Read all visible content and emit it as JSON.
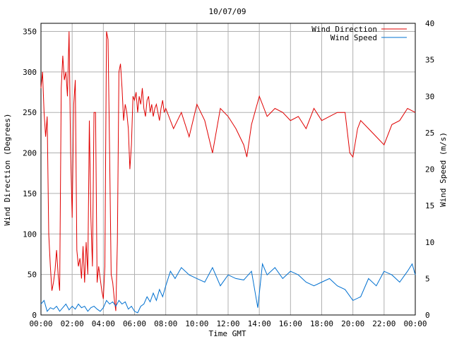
{
  "chart_data": {
    "type": "line",
    "title": "10/07/09",
    "xlabel": "Time GMT",
    "ylabel_left": "Wind Direction (Degrees)",
    "ylabel_right": "Wind Speed (m/s)",
    "x_ticks": [
      "00:00",
      "02:00",
      "04:00",
      "06:00",
      "08:00",
      "10:00",
      "12:00",
      "14:00",
      "16:00",
      "18:00",
      "20:00",
      "22:00",
      "00:00"
    ],
    "x_range_hours": [
      0,
      24
    ],
    "y_left_ticks": [
      "0",
      "50",
      "100",
      "150",
      "200",
      "250",
      "300",
      "350"
    ],
    "y_left_range": [
      0,
      360
    ],
    "y_right_ticks": [
      "0",
      "5",
      "10",
      "15",
      "20",
      "25",
      "30",
      "35",
      "40"
    ],
    "y_right_range": [
      0,
      40
    ],
    "grid": true,
    "legend_position": "top-right",
    "colors": {
      "direction": "#e00000",
      "speed": "#0070d0"
    },
    "series": [
      {
        "name": "Wind Direction",
        "axis": "left",
        "x_hours": [
          0,
          0.1,
          0.2,
          0.3,
          0.4,
          0.5,
          0.6,
          0.7,
          0.8,
          0.9,
          1,
          1.1,
          1.2,
          1.3,
          1.4,
          1.5,
          1.6,
          1.7,
          1.8,
          1.9,
          2,
          2.1,
          2.2,
          2.3,
          2.4,
          2.5,
          2.6,
          2.7,
          2.8,
          2.9,
          3,
          3.1,
          3.2,
          3.3,
          3.4,
          3.5,
          3.6,
          3.7,
          3.8,
          3.9,
          4,
          4.1,
          4.2,
          4.3,
          4.4,
          4.5,
          4.6,
          4.7,
          4.8,
          4.9,
          5,
          5.1,
          5.2,
          5.3,
          5.4,
          5.5,
          5.6,
          5.7,
          5.8,
          5.9,
          6,
          6.1,
          6.2,
          6.3,
          6.4,
          6.5,
          6.6,
          6.7,
          6.8,
          6.9,
          7,
          7.1,
          7.2,
          7.3,
          7.4,
          7.5,
          7.6,
          7.7,
          7.8,
          7.9,
          8,
          8.5,
          9,
          9.5,
          10,
          10.5,
          11,
          11.5,
          12,
          12.5,
          13,
          13.2,
          13.5,
          14,
          14.5,
          15,
          15.5,
          16,
          16.5,
          17,
          17.5,
          18,
          18.5,
          19,
          19.5,
          19.8,
          20,
          20.3,
          20.5,
          21,
          21.5,
          22,
          22.5,
          23,
          23.5,
          24
        ],
        "values": [
          280,
          300,
          250,
          220,
          245,
          100,
          60,
          30,
          40,
          55,
          80,
          50,
          30,
          280,
          320,
          290,
          300,
          270,
          350,
          200,
          120,
          260,
          290,
          80,
          60,
          70,
          45,
          85,
          40,
          90,
          50,
          240,
          120,
          60,
          250,
          250,
          40,
          60,
          45,
          30,
          20,
          60,
          350,
          340,
          200,
          50,
          40,
          20,
          5,
          90,
          300,
          310,
          280,
          240,
          260,
          250,
          230,
          180,
          210,
          270,
          265,
          275,
          250,
          270,
          260,
          280,
          255,
          245,
          265,
          270,
          250,
          260,
          245,
          255,
          260,
          250,
          240,
          255,
          265,
          250,
          255,
          230,
          250,
          220,
          260,
          240,
          200,
          255,
          245,
          230,
          210,
          195,
          235,
          270,
          245,
          255,
          250,
          240,
          245,
          230,
          255,
          240,
          245,
          250,
          250,
          200,
          195,
          230,
          240,
          230,
          220,
          210,
          235,
          240,
          255,
          250
        ]
      },
      {
        "name": "Wind Speed",
        "axis": "right",
        "x_hours": [
          0,
          0.2,
          0.4,
          0.6,
          0.8,
          1,
          1.2,
          1.4,
          1.6,
          1.8,
          2,
          2.2,
          2.4,
          2.6,
          2.8,
          3,
          3.2,
          3.4,
          3.6,
          3.8,
          4,
          4.2,
          4.4,
          4.6,
          4.8,
          5,
          5.2,
          5.4,
          5.6,
          5.8,
          6,
          6.2,
          6.4,
          6.6,
          6.8,
          7,
          7.2,
          7.4,
          7.6,
          7.8,
          8,
          8.3,
          8.6,
          9,
          9.5,
          10,
          10.5,
          11,
          11.5,
          12,
          12.5,
          13,
          13.5,
          13.9,
          14.2,
          14.5,
          15,
          15.5,
          16,
          16.5,
          17,
          17.5,
          18,
          18.5,
          19,
          19.5,
          20,
          20.5,
          21,
          21.5,
          22,
          22.5,
          23,
          23.5,
          23.8,
          24
        ],
        "values": [
          1.5,
          2,
          0.5,
          1,
          0.8,
          1.2,
          0.5,
          1,
          1.5,
          0.7,
          1.2,
          0.8,
          1.5,
          1,
          1.2,
          0.5,
          1,
          1.2,
          0.8,
          0.5,
          1,
          2,
          1.5,
          1.8,
          1.2,
          2,
          1.5,
          1.8,
          0.8,
          1.2,
          0.5,
          0.3,
          1.2,
          1.5,
          2.5,
          1.8,
          3,
          2,
          3.5,
          2.5,
          4,
          6,
          5,
          6.5,
          5.5,
          5,
          4.5,
          6.5,
          4,
          5.5,
          5,
          4.8,
          6,
          1,
          7,
          5.5,
          6.5,
          5,
          6,
          5.5,
          4.5,
          4,
          4.5,
          5,
          4,
          3.5,
          2,
          2.5,
          5,
          4,
          6,
          5.5,
          4.5,
          6,
          7,
          5.5
        ]
      }
    ]
  }
}
